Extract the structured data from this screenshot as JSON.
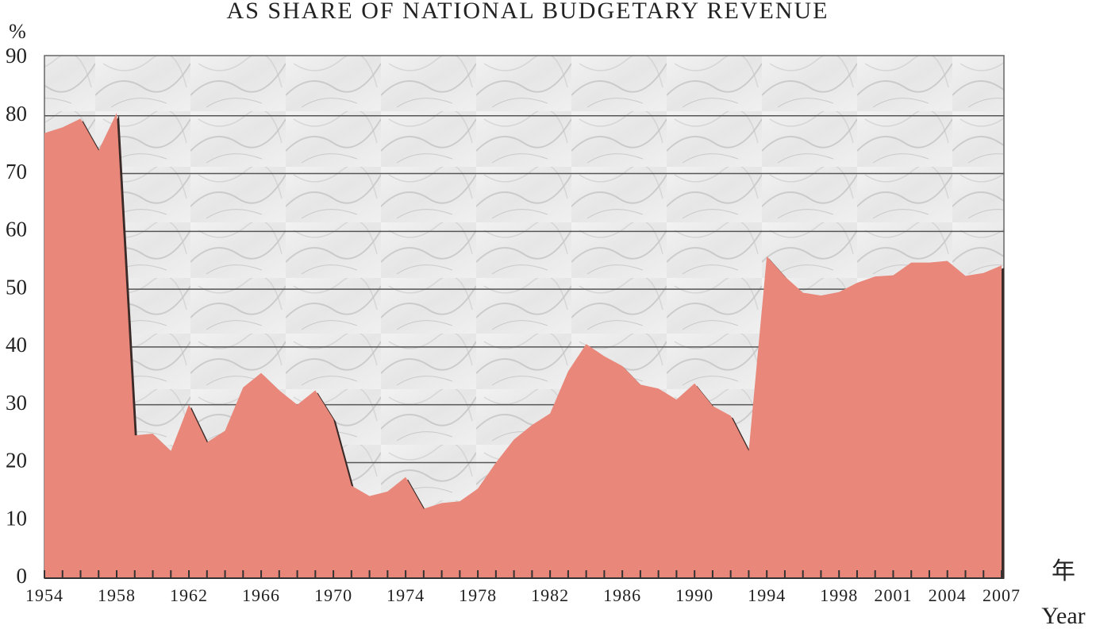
{
  "chart_data": {
    "type": "area",
    "title": "AS SHARE OF NATIONAL BUDGETARY REVENUE",
    "y_label": "%",
    "x_label": "年",
    "x_label_en": "Year",
    "categories": [
      "1954",
      null,
      null,
      null,
      "1958",
      null,
      null,
      null,
      "1962",
      null,
      null,
      null,
      "1966",
      null,
      null,
      null,
      "1970",
      null,
      null,
      null,
      "1974",
      null,
      null,
      null,
      "1978",
      null,
      null,
      null,
      "1982",
      null,
      null,
      null,
      "1986",
      null,
      null,
      null,
      "1990",
      null,
      null,
      null,
      "1994",
      null,
      null,
      null,
      "1998",
      null,
      null,
      "2001",
      null,
      null,
      "2004",
      null,
      null,
      "2007"
    ],
    "values": [
      77,
      78,
      79.5,
      74,
      80.5,
      24.7,
      25,
      22,
      30,
      23.5,
      25.5,
      33,
      35.5,
      32.5,
      30,
      32.5,
      27.5,
      16,
      14.2,
      15,
      17.5,
      12,
      13,
      13.3,
      15.5,
      20,
      24,
      26.5,
      28.5,
      35.8,
      40.5,
      38.4,
      36.7,
      33.5,
      32.8,
      30.9,
      33.7,
      29.8,
      28.1,
      22,
      55.7,
      52.2,
      49.4,
      48.9,
      49.5,
      51.1,
      52.2,
      52.4,
      54.6,
      54.6,
      54.9,
      52.3,
      52.8,
      54.1
    ],
    "color": "#e8877a",
    "ylim": [
      0,
      90
    ],
    "yticks": [
      0,
      10,
      20,
      30,
      40,
      50,
      60,
      70,
      80,
      90
    ],
    "grid": true
  }
}
